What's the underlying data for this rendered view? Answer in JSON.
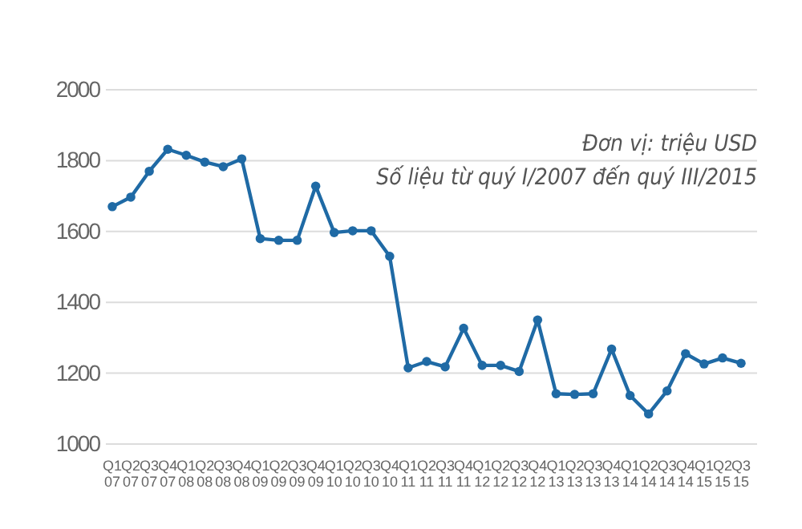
{
  "chart_data": {
    "type": "line",
    "categories": [
      "Q1 07",
      "Q2 07",
      "Q3 07",
      "Q4 07",
      "Q1 08",
      "Q2 08",
      "Q3 08",
      "Q4 08",
      "Q1 09",
      "Q2 09",
      "Q3 09",
      "Q4 09",
      "Q1 10",
      "Q2 10",
      "Q3 10",
      "Q4 10",
      "Q1 11",
      "Q2 11",
      "Q3 11",
      "Q4 11",
      "Q1 12",
      "Q2 12",
      "Q3 12",
      "Q4 12",
      "Q1 13",
      "Q2 13",
      "Q3 13",
      "Q4 13",
      "Q1 14",
      "Q2 14",
      "Q3 14",
      "Q4 14",
      "Q1 15",
      "Q2 15",
      "Q3 15"
    ],
    "series": [
      {
        "color": "#1f6aa5",
        "values": [
          1670,
          1697,
          1770,
          1832,
          1815,
          1796,
          1783,
          1805,
          1580,
          1575,
          1575,
          1728,
          1597,
          1602,
          1602,
          1530,
          1215,
          1233,
          1218,
          1327,
          1222,
          1222,
          1205,
          1350,
          1142,
          1140,
          1142,
          1268,
          1137,
          1085,
          1150,
          1255,
          1226,
          1243,
          1228
        ]
      }
    ],
    "ylim": [
      1000,
      2000
    ],
    "yticks": [
      1000,
      1200,
      1400,
      1600,
      1800,
      2000
    ],
    "grid": "y",
    "marker": "circle",
    "line_style": "solid",
    "annotations": [
      "Đơn vị: triệu USD",
      "Số liệu từ quý I/2007 đến quý III/2015"
    ]
  }
}
